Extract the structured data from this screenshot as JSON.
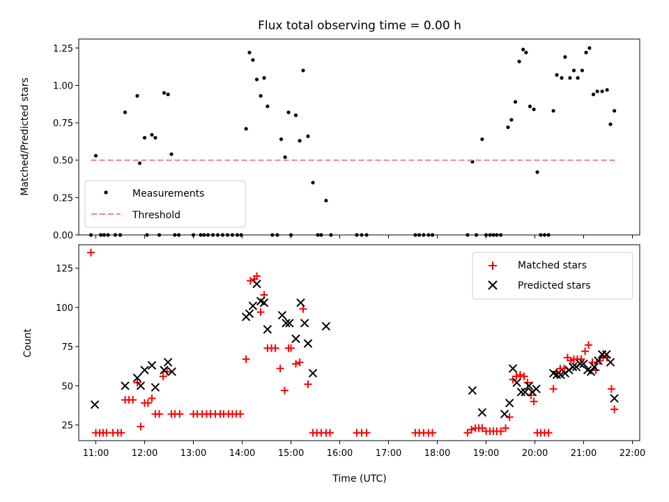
{
  "chart_data": [
    {
      "type": "scatter",
      "title": "Flux total observing time = 0.00 h",
      "xlabel": "",
      "ylabel": "Matched/Predicted stars",
      "xlim": [
        10.65,
        22.15
      ],
      "ylim": [
        0,
        1.31
      ],
      "yticks": [
        0.0,
        0.25,
        0.5,
        0.75,
        1.0,
        1.25
      ],
      "ytick_labels": [
        "0.00",
        "0.25",
        "0.50",
        "0.75",
        "1.00",
        "1.25"
      ],
      "xticks": [
        11,
        12,
        13,
        14,
        15,
        16,
        17,
        18,
        19,
        20,
        21,
        22
      ],
      "legend_position": "lower-left",
      "colors": {
        "measurements": "#000000",
        "threshold": "#ff7f7f"
      },
      "series": [
        {
          "name": "Measurements",
          "marker": "dot",
          "points": [
            [
              10.9,
              0.0
            ],
            [
              11.0,
              0.53
            ],
            [
              11.1,
              0.0
            ],
            [
              11.17,
              0.0
            ],
            [
              11.25,
              0.0
            ],
            [
              11.4,
              0.0
            ],
            [
              11.5,
              0.0
            ],
            [
              11.6,
              0.82
            ],
            [
              11.85,
              0.93
            ],
            [
              11.9,
              0.48
            ],
            [
              12.0,
              0.65
            ],
            [
              12.05,
              0.0
            ],
            [
              12.15,
              0.67
            ],
            [
              12.22,
              0.65
            ],
            [
              12.3,
              0.0
            ],
            [
              12.4,
              0.95
            ],
            [
              12.48,
              0.94
            ],
            [
              12.55,
              0.54
            ],
            [
              12.62,
              0.0
            ],
            [
              12.7,
              0.0
            ],
            [
              13.0,
              0.0
            ],
            [
              13.15,
              0.0
            ],
            [
              13.22,
              0.0
            ],
            [
              13.3,
              0.0
            ],
            [
              13.4,
              0.0
            ],
            [
              13.5,
              0.0
            ],
            [
              13.6,
              0.0
            ],
            [
              13.7,
              0.0
            ],
            [
              13.8,
              0.0
            ],
            [
              13.9,
              0.0
            ],
            [
              13.98,
              0.0
            ],
            [
              14.08,
              0.71
            ],
            [
              14.15,
              1.22
            ],
            [
              14.22,
              1.17
            ],
            [
              14.3,
              1.04
            ],
            [
              14.38,
              0.93
            ],
            [
              14.45,
              1.05
            ],
            [
              14.52,
              0.86
            ],
            [
              14.62,
              0.0
            ],
            [
              14.72,
              0.0
            ],
            [
              14.8,
              0.64
            ],
            [
              14.88,
              0.52
            ],
            [
              14.95,
              0.82
            ],
            [
              15.0,
              0.0
            ],
            [
              15.1,
              0.8
            ],
            [
              15.18,
              0.63
            ],
            [
              15.25,
              1.1
            ],
            [
              15.35,
              0.66
            ],
            [
              15.45,
              0.35
            ],
            [
              15.55,
              0.0
            ],
            [
              15.62,
              0.0
            ],
            [
              15.72,
              0.23
            ],
            [
              15.82,
              0.0
            ],
            [
              16.35,
              0.0
            ],
            [
              16.45,
              0.0
            ],
            [
              16.55,
              0.0
            ],
            [
              17.55,
              0.0
            ],
            [
              17.63,
              0.0
            ],
            [
              17.72,
              0.0
            ],
            [
              17.82,
              0.0
            ],
            [
              17.9,
              0.0
            ],
            [
              18.62,
              0.0
            ],
            [
              18.72,
              0.49
            ],
            [
              18.8,
              0.0
            ],
            [
              18.92,
              0.64
            ],
            [
              19.0,
              0.0
            ],
            [
              19.08,
              0.0
            ],
            [
              19.15,
              0.0
            ],
            [
              19.22,
              0.0
            ],
            [
              19.3,
              0.0
            ],
            [
              19.45,
              0.72
            ],
            [
              19.52,
              0.77
            ],
            [
              19.6,
              0.89
            ],
            [
              19.68,
              1.16
            ],
            [
              19.76,
              1.24
            ],
            [
              19.82,
              1.22
            ],
            [
              19.9,
              0.86
            ],
            [
              19.98,
              0.84
            ],
            [
              20.05,
              0.42
            ],
            [
              20.12,
              0.0
            ],
            [
              20.2,
              0.0
            ],
            [
              20.28,
              0.0
            ],
            [
              20.38,
              0.83
            ],
            [
              20.45,
              1.07
            ],
            [
              20.55,
              1.05
            ],
            [
              20.62,
              1.19
            ],
            [
              20.72,
              1.05
            ],
            [
              20.8,
              1.1
            ],
            [
              20.88,
              1.05
            ],
            [
              20.97,
              1.1
            ],
            [
              21.05,
              1.22
            ],
            [
              21.12,
              1.25
            ],
            [
              21.2,
              0.94
            ],
            [
              21.28,
              0.96
            ],
            [
              21.38,
              0.96
            ],
            [
              21.48,
              0.97
            ],
            [
              21.55,
              0.74
            ],
            [
              21.63,
              0.83
            ]
          ]
        },
        {
          "name": "Threshold",
          "style": "dashed-line",
          "points": [
            [
              10.9,
              0.5
            ],
            [
              21.65,
              0.5
            ]
          ]
        }
      ]
    },
    {
      "type": "scatter",
      "title": "",
      "xlabel": "Time (UTC)",
      "ylabel": "Count",
      "xlim": [
        10.65,
        22.15
      ],
      "ylim": [
        15,
        140
      ],
      "yticks": [
        25,
        50,
        75,
        100,
        125
      ],
      "ytick_labels": [
        "25",
        "50",
        "75",
        "100",
        "125"
      ],
      "xticks": [
        11,
        12,
        13,
        14,
        15,
        16,
        17,
        18,
        19,
        20,
        21,
        22
      ],
      "xtick_labels": [
        "11:00",
        "12:00",
        "13:00",
        "14:00",
        "15:00",
        "16:00",
        "17:00",
        "18:00",
        "19:00",
        "20:00",
        "21:00",
        "22:00"
      ],
      "legend_position": "top-right",
      "colors": {
        "matched": "#ff0000",
        "predicted": "#000000"
      },
      "series": [
        {
          "name": "Matched stars",
          "marker": "plus",
          "points": [
            [
              10.9,
              135
            ],
            [
              11.0,
              20
            ],
            [
              11.08,
              20
            ],
            [
              11.15,
              20
            ],
            [
              11.22,
              20
            ],
            [
              11.35,
              20
            ],
            [
              11.45,
              20
            ],
            [
              11.52,
              20
            ],
            [
              11.6,
              41
            ],
            [
              11.68,
              41
            ],
            [
              11.76,
              41
            ],
            [
              11.85,
              52
            ],
            [
              11.92,
              24
            ],
            [
              12.0,
              39
            ],
            [
              12.07,
              39
            ],
            [
              12.15,
              42
            ],
            [
              12.22,
              32
            ],
            [
              12.3,
              32
            ],
            [
              12.38,
              56
            ],
            [
              12.46,
              59
            ],
            [
              12.55,
              32
            ],
            [
              12.62,
              32
            ],
            [
              12.72,
              32
            ],
            [
              13.0,
              32
            ],
            [
              13.08,
              32
            ],
            [
              13.18,
              32
            ],
            [
              13.27,
              32
            ],
            [
              13.35,
              32
            ],
            [
              13.45,
              32
            ],
            [
              13.55,
              32
            ],
            [
              13.62,
              32
            ],
            [
              13.72,
              32
            ],
            [
              13.8,
              32
            ],
            [
              13.88,
              32
            ],
            [
              13.96,
              32
            ],
            [
              14.08,
              67
            ],
            [
              14.17,
              117
            ],
            [
              14.25,
              118
            ],
            [
              14.3,
              120
            ],
            [
              14.38,
              97
            ],
            [
              14.45,
              108
            ],
            [
              14.52,
              74
            ],
            [
              14.6,
              74
            ],
            [
              14.68,
              74
            ],
            [
              14.78,
              61
            ],
            [
              14.87,
              47
            ],
            [
              14.95,
              74
            ],
            [
              15.0,
              74
            ],
            [
              15.1,
              64
            ],
            [
              15.18,
              65
            ],
            [
              15.25,
              99
            ],
            [
              15.35,
              51
            ],
            [
              15.45,
              20
            ],
            [
              15.53,
              20
            ],
            [
              15.62,
              20
            ],
            [
              15.72,
              20
            ],
            [
              15.8,
              20
            ],
            [
              16.35,
              20
            ],
            [
              16.45,
              20
            ],
            [
              16.55,
              20
            ],
            [
              17.55,
              20
            ],
            [
              17.63,
              20
            ],
            [
              17.72,
              20
            ],
            [
              17.82,
              20
            ],
            [
              17.9,
              20
            ],
            [
              18.62,
              20
            ],
            [
              18.7,
              22
            ],
            [
              18.78,
              23
            ],
            [
              18.85,
              23
            ],
            [
              18.92,
              23
            ],
            [
              19.0,
              21
            ],
            [
              19.08,
              21
            ],
            [
              19.15,
              21
            ],
            [
              19.22,
              21
            ],
            [
              19.3,
              21
            ],
            [
              19.4,
              23
            ],
            [
              19.48,
              30
            ],
            [
              19.55,
              54
            ],
            [
              19.62,
              56
            ],
            [
              19.7,
              57
            ],
            [
              19.78,
              56
            ],
            [
              19.85,
              52
            ],
            [
              19.92,
              44
            ],
            [
              19.98,
              40
            ],
            [
              20.05,
              20
            ],
            [
              20.12,
              20
            ],
            [
              20.2,
              20
            ],
            [
              20.28,
              20
            ],
            [
              20.38,
              48
            ],
            [
              20.45,
              58
            ],
            [
              20.52,
              61
            ],
            [
              20.6,
              61
            ],
            [
              20.67,
              68
            ],
            [
              20.74,
              66
            ],
            [
              20.8,
              67
            ],
            [
              20.87,
              67
            ],
            [
              20.95,
              67
            ],
            [
              21.03,
              72
            ],
            [
              21.1,
              76
            ],
            [
              21.18,
              65
            ],
            [
              21.25,
              60
            ],
            [
              21.33,
              66
            ],
            [
              21.4,
              69
            ],
            [
              21.48,
              68
            ],
            [
              21.57,
              48
            ],
            [
              21.63,
              35
            ]
          ]
        },
        {
          "name": "Predicted stars",
          "marker": "x",
          "points": [
            [
              10.98,
              38
            ],
            [
              11.6,
              50
            ],
            [
              11.85,
              55
            ],
            [
              11.92,
              50
            ],
            [
              12.0,
              60
            ],
            [
              12.15,
              63
            ],
            [
              12.22,
              49
            ],
            [
              12.4,
              60
            ],
            [
              12.48,
              65
            ],
            [
              12.56,
              59
            ],
            [
              14.08,
              94
            ],
            [
              14.15,
              96
            ],
            [
              14.22,
              101
            ],
            [
              14.3,
              115
            ],
            [
              14.38,
              104
            ],
            [
              14.45,
              103
            ],
            [
              14.52,
              86
            ],
            [
              14.82,
              95
            ],
            [
              14.9,
              90
            ],
            [
              14.97,
              90
            ],
            [
              15.1,
              80
            ],
            [
              15.2,
              103
            ],
            [
              15.28,
              90
            ],
            [
              15.35,
              77
            ],
            [
              15.45,
              58
            ],
            [
              15.72,
              88
            ],
            [
              18.72,
              47
            ],
            [
              18.92,
              33
            ],
            [
              19.38,
              32
            ],
            [
              19.48,
              39
            ],
            [
              19.55,
              61
            ],
            [
              19.63,
              52
            ],
            [
              19.72,
              46
            ],
            [
              19.8,
              46
            ],
            [
              19.88,
              50
            ],
            [
              19.95,
              46
            ],
            [
              20.03,
              48
            ],
            [
              20.38,
              58
            ],
            [
              20.45,
              57
            ],
            [
              20.53,
              57
            ],
            [
              20.62,
              58
            ],
            [
              20.7,
              60
            ],
            [
              20.78,
              62
            ],
            [
              20.85,
              62
            ],
            [
              20.93,
              64
            ],
            [
              21.0,
              64
            ],
            [
              21.08,
              60
            ],
            [
              21.15,
              59
            ],
            [
              21.22,
              62
            ],
            [
              21.3,
              66
            ],
            [
              21.38,
              70
            ],
            [
              21.47,
              70
            ],
            [
              21.55,
              65
            ],
            [
              21.63,
              42
            ]
          ]
        }
      ]
    }
  ]
}
